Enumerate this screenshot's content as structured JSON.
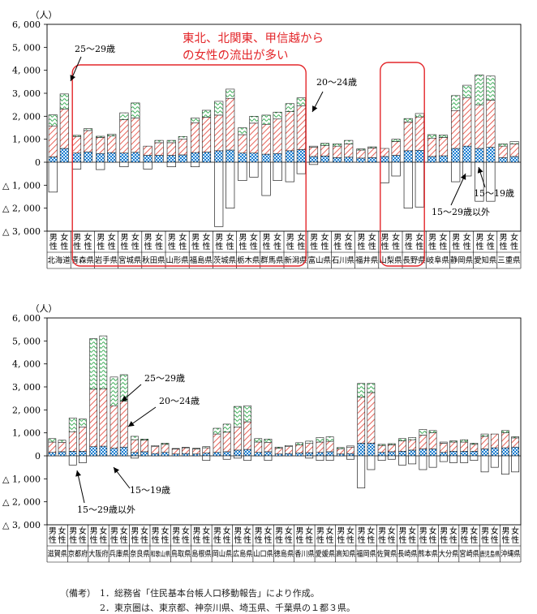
{
  "chart_data": [
    {
      "type": "bar",
      "ylabel": "（人）",
      "ylim": [
        -3000,
        6000
      ],
      "yticks": [
        {
          "v": 6000,
          "label": "6, 000"
        },
        {
          "v": 5000,
          "label": "5, 000"
        },
        {
          "v": 4000,
          "label": "4, 000"
        },
        {
          "v": 3000,
          "label": "3, 000"
        },
        {
          "v": 2000,
          "label": "2, 000"
        },
        {
          "v": 1000,
          "label": "1, 000"
        },
        {
          "v": 0,
          "label": "0"
        },
        {
          "v": -1000,
          "label": "△ 1, 000"
        },
        {
          "v": -2000,
          "label": "△ 2, 000"
        },
        {
          "v": -3000,
          "label": "△ 3, 000"
        }
      ],
      "sex_labels": [
        "男\n性",
        "女\n性"
      ],
      "series_names": [
        "15～19歳",
        "20～24歳",
        "25～29歳",
        "15～29歳以外"
      ],
      "categories": [
        "北海道",
        "青森県",
        "岩手県",
        "宮城県",
        "秋田県",
        "山形県",
        "福島県",
        "茨城県",
        "栃木県",
        "群馬県",
        "新潟県",
        "富山県",
        "石川県",
        "福井県",
        "山梨県",
        "長野県",
        "岐阜県",
        "静岡県",
        "愛知県",
        "三重県"
      ],
      "bars": [
        [
          [
            230,
            1350,
            480,
            -1300
          ],
          [
            600,
            1720,
            650,
            0
          ]
        ],
        [
          [
            400,
            720,
            50,
            -300
          ],
          [
            450,
            930,
            80,
            0
          ]
        ],
        [
          [
            380,
            700,
            50,
            -320
          ],
          [
            420,
            720,
            80,
            0
          ]
        ],
        [
          [
            400,
            1450,
            300,
            -200
          ],
          [
            430,
            1500,
            650,
            0
          ]
        ],
        [
          [
            300,
            400,
            0,
            -300
          ],
          [
            300,
            550,
            100,
            0
          ]
        ],
        [
          [
            300,
            550,
            100,
            -200
          ],
          [
            320,
            680,
            120,
            0
          ]
        ],
        [
          [
            420,
            1300,
            200,
            -200
          ],
          [
            440,
            1520,
            300,
            0
          ]
        ],
        [
          [
            500,
            1550,
            600,
            -2800
          ],
          [
            530,
            2250,
            400,
            -2000
          ]
        ],
        [
          [
            400,
            800,
            300,
            -800
          ],
          [
            400,
            1300,
            300,
            -650
          ]
        ],
        [
          [
            350,
            1300,
            400,
            -1450
          ],
          [
            380,
            1500,
            300,
            -800
          ]
        ],
        [
          [
            500,
            1700,
            350,
            -850
          ],
          [
            550,
            1900,
            350,
            -500
          ]
        ],
        [
          [
            250,
            400,
            50,
            -100
          ],
          [
            270,
            450,
            100,
            0
          ]
        ],
        [
          [
            200,
            500,
            100,
            0
          ],
          [
            220,
            580,
            150,
            0
          ]
        ],
        [
          [
            180,
            350,
            50,
            0
          ],
          [
            200,
            420,
            50,
            0
          ]
        ],
        [
          [
            250,
            350,
            0,
            -900
          ],
          [
            300,
            600,
            100,
            -600
          ]
        ],
        [
          [
            500,
            1250,
            150,
            -2000
          ],
          [
            520,
            1450,
            150,
            -1950
          ]
        ],
        [
          [
            250,
            800,
            150,
            0
          ],
          [
            280,
            800,
            100,
            0
          ]
        ],
        [
          [
            600,
            1650,
            650,
            -850
          ],
          [
            700,
            2100,
            550,
            -600
          ]
        ],
        [
          [
            600,
            1900,
            1300,
            -1700
          ],
          [
            650,
            2050,
            1050,
            -1700
          ]
        ],
        [
          [
            200,
            500,
            100,
            0
          ],
          [
            250,
            550,
            100,
            0
          ]
        ]
      ],
      "annotations": {
        "headline": "東北、北関東、甲信越から\nの女性の流出が多い",
        "c25": "25～29歳",
        "c20": "20～24歳",
        "c15": "15～19歳",
        "cOther": "15～29歳以外"
      }
    },
    {
      "type": "bar",
      "ylabel": "（人）",
      "ylim": [
        -3000,
        6000
      ],
      "yticks": [
        {
          "v": 6000,
          "label": "6, 000"
        },
        {
          "v": 5000,
          "label": "5, 000"
        },
        {
          "v": 4000,
          "label": "4, 000"
        },
        {
          "v": 3000,
          "label": "3, 000"
        },
        {
          "v": 2000,
          "label": "2, 000"
        },
        {
          "v": 1000,
          "label": "1, 000"
        },
        {
          "v": 0,
          "label": "0"
        },
        {
          "v": -1000,
          "label": "△ 1, 000"
        },
        {
          "v": -2000,
          "label": "△ 2, 000"
        },
        {
          "v": -3000,
          "label": "△ 3, 000"
        }
      ],
      "sex_labels": [
        "男\n性",
        "女\n性"
      ],
      "series_names": [
        "15～19歳",
        "20～24歳",
        "25～29歳",
        "15～29歳以外"
      ],
      "categories": [
        "滋賀県",
        "京都府",
        "大阪府",
        "兵庫県",
        "奈良県",
        "和歌山県",
        "鳥取県",
        "島根県",
        "岡山県",
        "広島県",
        "山口県",
        "徳島県",
        "香川県",
        "愛媛県",
        "高知県",
        "福岡県",
        "佐賀県",
        "長崎県",
        "熊本県",
        "大分県",
        "宮崎県",
        "鹿児島県",
        "沖縄県"
      ],
      "bars": [
        [
          [
            150,
            450,
            150,
            0
          ],
          [
            180,
            400,
            100,
            0
          ]
        ],
        [
          [
            200,
            850,
            600,
            -400
          ],
          [
            200,
            1050,
            350,
            -300
          ]
        ],
        [
          [
            400,
            2500,
            2200,
            0
          ],
          [
            420,
            2500,
            2300,
            0
          ]
        ],
        [
          [
            330,
            1850,
            1250,
            0
          ],
          [
            380,
            2000,
            1150,
            0
          ]
        ],
        [
          [
            150,
            550,
            150,
            -100
          ],
          [
            180,
            500,
            50,
            0
          ]
        ],
        [
          [
            100,
            300,
            50,
            0
          ],
          [
            150,
            350,
            50,
            0
          ]
        ],
        [
          [
            80,
            220,
            20,
            0
          ],
          [
            100,
            250,
            20,
            0
          ]
        ],
        [
          [
            80,
            220,
            30,
            0
          ],
          [
            120,
            230,
            50,
            -200
          ]
        ],
        [
          [
            150,
            800,
            250,
            0
          ],
          [
            180,
            850,
            350,
            -150
          ]
        ],
        [
          [
            250,
            1000,
            900,
            -100
          ],
          [
            280,
            1200,
            700,
            -200
          ]
        ],
        [
          [
            150,
            450,
            150,
            0
          ],
          [
            180,
            400,
            150,
            -200
          ]
        ],
        [
          [
            80,
            250,
            50,
            0
          ],
          [
            100,
            300,
            50,
            0
          ]
        ],
        [
          [
            120,
            350,
            100,
            0
          ],
          [
            140,
            400,
            100,
            -100
          ]
        ],
        [
          [
            150,
            450,
            200,
            -200
          ],
          [
            180,
            450,
            200,
            -200
          ]
        ],
        [
          [
            80,
            230,
            50,
            0
          ],
          [
            100,
            280,
            50,
            -150
          ]
        ],
        [
          [
            550,
            2000,
            600,
            -1400
          ],
          [
            550,
            2200,
            400,
            -600
          ]
        ],
        [
          [
            150,
            300,
            50,
            -200
          ],
          [
            180,
            300,
            50,
            -150
          ]
        ],
        [
          [
            200,
            450,
            100,
            -400
          ],
          [
            250,
            450,
            100,
            -350
          ]
        ],
        [
          [
            300,
            600,
            250,
            -600
          ],
          [
            300,
            700,
            100,
            -500
          ]
        ],
        [
          [
            150,
            400,
            50,
            -250
          ],
          [
            200,
            400,
            50,
            -300
          ]
        ],
        [
          [
            200,
            400,
            100,
            -300
          ],
          [
            200,
            300,
            50,
            -200
          ]
        ],
        [
          [
            300,
            550,
            100,
            -700
          ],
          [
            350,
            600,
            0,
            -500
          ]
        ],
        [
          [
            350,
            650,
            100,
            -800
          ],
          [
            380,
            400,
            50,
            -700
          ]
        ]
      ],
      "annotations": {
        "c25": "25～29歳",
        "c20": "20～24歳",
        "c15": "15～19歳",
        "cOther": "15～29歳以外"
      }
    }
  ],
  "notes": {
    "label": "（備考）",
    "line1": "1．総務省「住民基本台帳人口移動報告」により作成。",
    "line2": "2．東京圏は、東京都、神奈川県、埼玉県、千葉県の１都３県。"
  },
  "colors": {
    "s15": "#1f7fd0",
    "s20": "#e23a2e",
    "s25": "#2ca84a",
    "other": "#ffffff",
    "highlight": "#e3262a"
  }
}
